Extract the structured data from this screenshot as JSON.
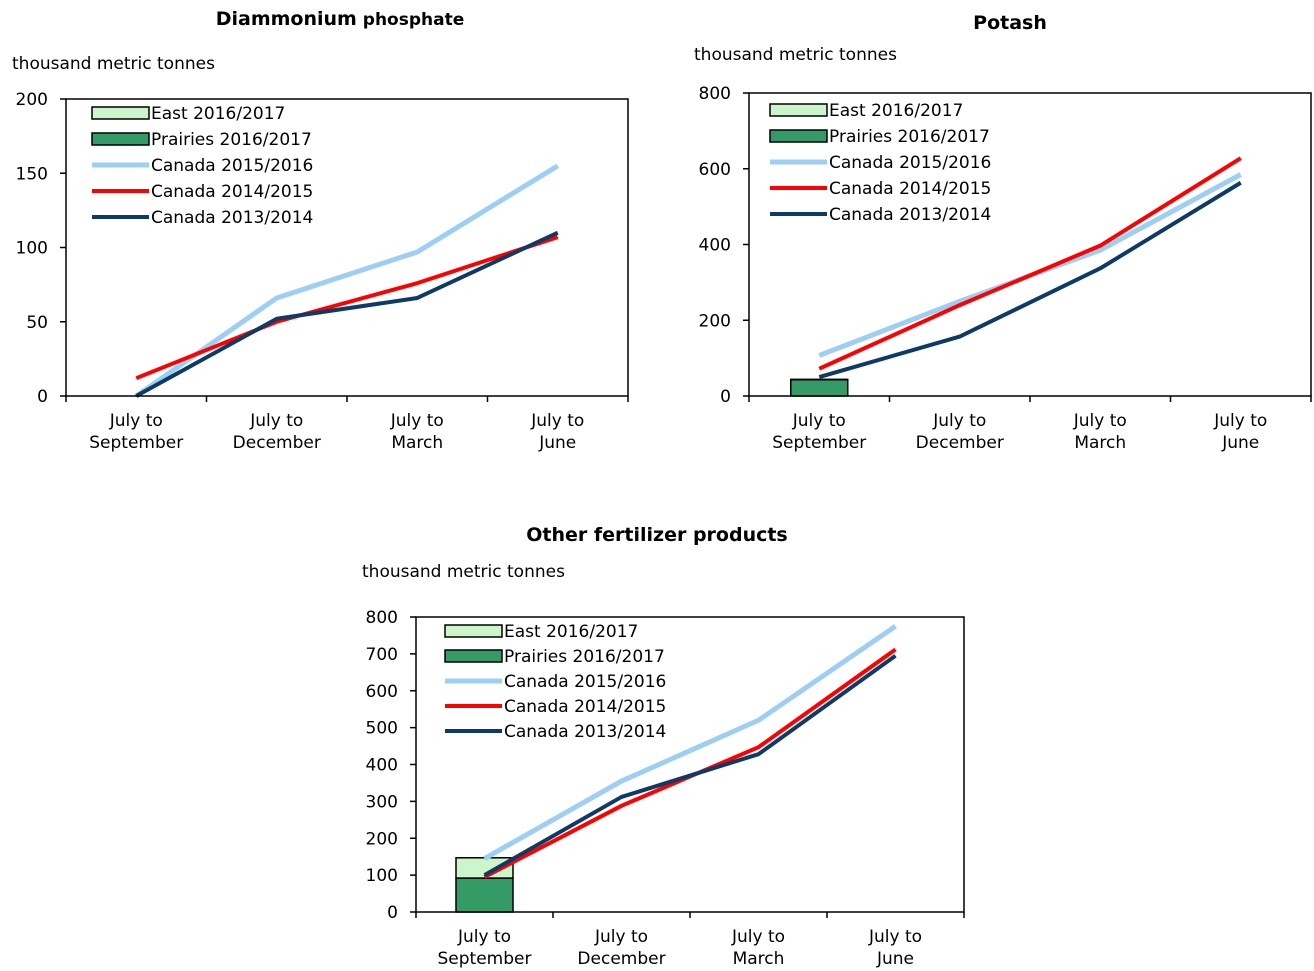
{
  "chart_data": [
    {
      "type": "line",
      "title_bold": "Diammonium",
      "title_rest": "phosphate",
      "ylabel": "thousand metric tonnes",
      "ylim": [
        0,
        200
      ],
      "yticks": [
        0,
        50,
        100,
        150,
        200
      ],
      "categories": [
        [
          "July to",
          "September"
        ],
        [
          "July to",
          "December"
        ],
        [
          "July to",
          "March"
        ],
        [
          "July to",
          "June"
        ]
      ],
      "legend": [
        "East 2016/2017",
        "Prairies 2016/2017",
        "Canada 2015/2016",
        "Canada 2014/2015",
        "Canada 2013/2014"
      ],
      "bars": {
        "prairies": [
          0,
          null,
          null,
          null
        ],
        "east": [
          0,
          null,
          null,
          null
        ]
      },
      "series": [
        {
          "name": "Canada 2015/2016",
          "values": [
            0,
            66,
            97,
            155
          ]
        },
        {
          "name": "Canada 2014/2015",
          "values": [
            12,
            50,
            76,
            107
          ]
        },
        {
          "name": "Canada 2013/2014",
          "values": [
            0,
            52,
            66,
            110
          ]
        }
      ]
    },
    {
      "type": "line",
      "title_bold": "Potash",
      "title_rest": "",
      "ylabel": "thousand metric tonnes",
      "ylim": [
        0,
        800
      ],
      "yticks": [
        0,
        200,
        400,
        600,
        800
      ],
      "categories": [
        [
          "July to",
          "September"
        ],
        [
          "July to",
          "December"
        ],
        [
          "July to",
          "March"
        ],
        [
          "July to",
          "June"
        ]
      ],
      "legend": [
        "East 2016/2017",
        "Prairies 2016/2017",
        "Canada 2015/2016",
        "Canada 2014/2015",
        "Canada 2013/2014"
      ],
      "bars": {
        "prairies": [
          43,
          null,
          null,
          null
        ],
        "east": [
          1,
          null,
          null,
          null
        ]
      },
      "series": [
        {
          "name": "Canada 2015/2016",
          "values": [
            107,
            250,
            385,
            585
          ]
        },
        {
          "name": "Canada 2014/2015",
          "values": [
            72,
            240,
            397,
            628
          ]
        },
        {
          "name": "Canada 2013/2014",
          "values": [
            50,
            157,
            337,
            563
          ]
        }
      ]
    },
    {
      "type": "line",
      "title_bold": "Other fertilizer products",
      "title_rest": "",
      "ylabel": "thousand metric tonnes",
      "ylim": [
        0,
        800
      ],
      "yticks": [
        0,
        100,
        200,
        300,
        400,
        500,
        600,
        700,
        800
      ],
      "categories": [
        [
          "July to",
          "September"
        ],
        [
          "July to",
          "December"
        ],
        [
          "July to",
          "March"
        ],
        [
          "July to",
          "June"
        ]
      ],
      "legend": [
        "East 2016/2017",
        "Prairies 2016/2017",
        "Canada 2015/2016",
        "Canada 2014/2015",
        "Canada 2013/2014"
      ],
      "bars": {
        "prairies": [
          92,
          null,
          null,
          null
        ],
        "east": [
          55,
          null,
          null,
          null
        ]
      },
      "series": [
        {
          "name": "Canada 2015/2016",
          "values": [
            145,
            355,
            520,
            775
          ]
        },
        {
          "name": "Canada 2014/2015",
          "values": [
            95,
            288,
            447,
            712
          ]
        },
        {
          "name": "Canada 2013/2014",
          "values": [
            100,
            312,
            428,
            695
          ]
        }
      ]
    }
  ],
  "colors": {
    "east_fill": "#ccf5cc",
    "prairies_fill": "#359b66",
    "canada_2015_2016": "#9dcff4",
    "canada_2014_2015": "#ff0000",
    "canada_2013_2014": "#0d3a66",
    "axis": "#000000"
  }
}
